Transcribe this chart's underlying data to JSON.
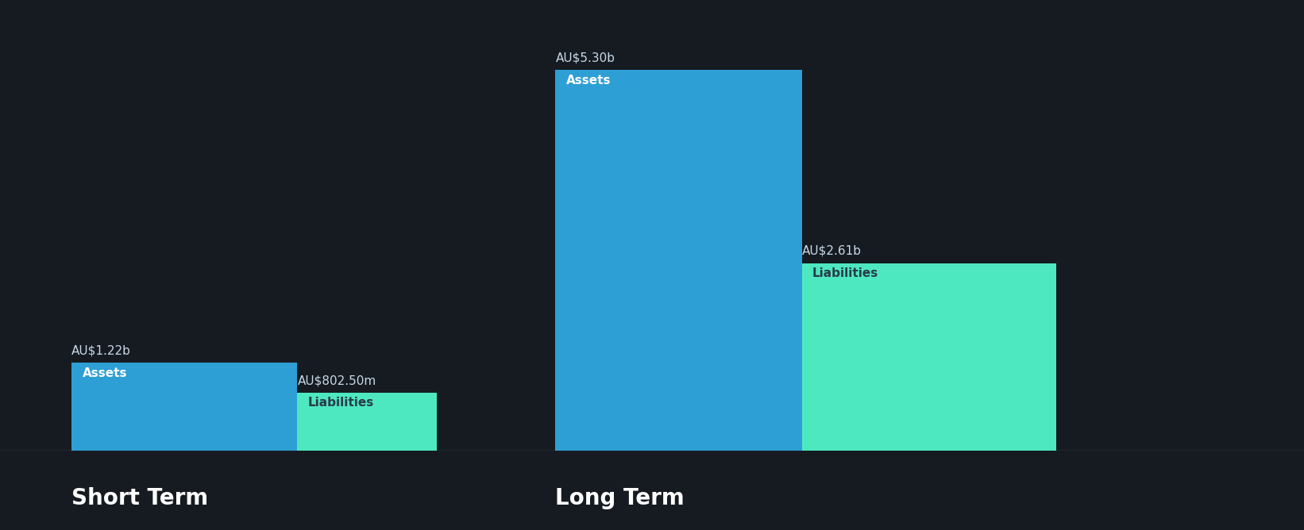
{
  "background_color": "#161b22",
  "bar_color_assets": "#2e9fd4",
  "bar_color_liabilities": "#4de8c0",
  "text_color_white": "#ffffff",
  "text_color_dark": "#2a3a4a",
  "label_color": "#ccddee",
  "short_term": {
    "assets_value": 1.22,
    "assets_label": "AU$1.22b",
    "liabilities_value": 0.8025,
    "liabilities_label": "AU$802.50m",
    "section_label": "Short Term"
  },
  "long_term": {
    "assets_value": 5.3,
    "assets_label": "AU$5.30b",
    "liabilities_value": 2.61,
    "liabilities_label": "AU$2.61b",
    "section_label": "Long Term"
  },
  "value_label_fontsize": 11,
  "bar_label_fontsize": 11,
  "section_label_fontsize": 20,
  "baseline_color": "#555566"
}
